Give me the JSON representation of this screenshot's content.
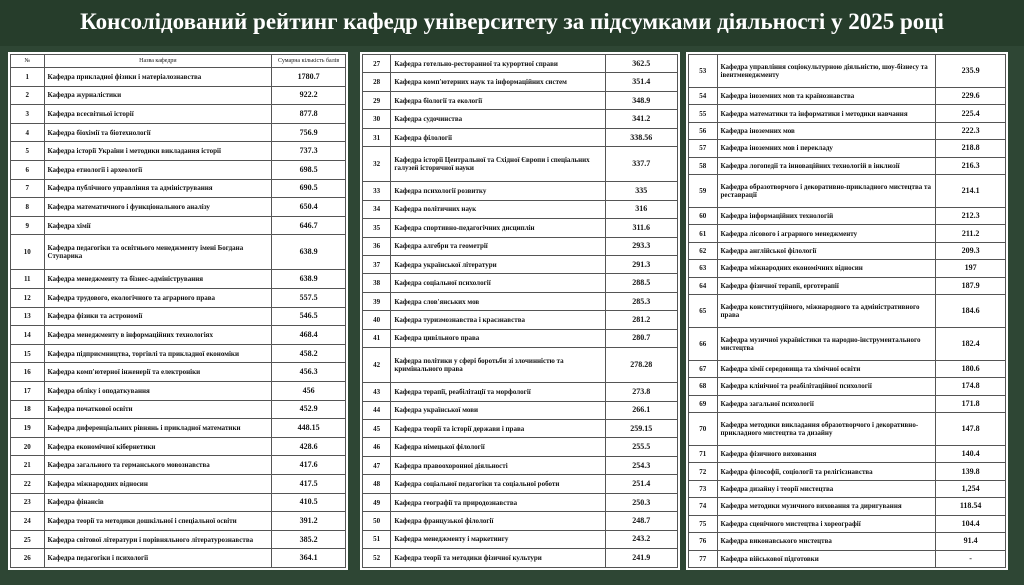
{
  "header": {
    "title": "Консолідований рейтинг кафедр університету за підсумками діяльності у 2025 році"
  },
  "columns": [
    "№",
    "Назва кафедри",
    "Сумарна кількість балів"
  ],
  "tables": [
    {
      "rows": [
        [
          "1",
          "Кафедра прикладної фізики і матеріалознавства",
          "1780.7"
        ],
        [
          "2",
          "Кафедра журналістики",
          "922.2"
        ],
        [
          "3",
          "Кафедра всесвітньої історії",
          "877.8"
        ],
        [
          "4",
          "Кафедра біохімії та біотехнології",
          "756.9"
        ],
        [
          "5",
          "Кафедра історії України і методики викладання історії",
          "737.3"
        ],
        [
          "6",
          "Кафедра етнології і археології",
          "698.5"
        ],
        [
          "7",
          "Кафедра публічного управління та адміністрування",
          "690.5"
        ],
        [
          "8",
          "Кафедра математичного і функціонального аналізу",
          "650.4"
        ],
        [
          "9",
          "Кафедра хімії",
          "646.7"
        ],
        [
          "10",
          "Кафедра педагогіки та освітнього менеджменту імені Богдана Ступарика",
          "638.9"
        ],
        [
          "11",
          "Кафедра менеджменту та бізнес-адміністрування",
          "638.9"
        ],
        [
          "12",
          "Кафедра трудового, екологічного та аграрного права",
          "557.5"
        ],
        [
          "13",
          "Кафедра фізики та астрономії",
          "546.5"
        ],
        [
          "14",
          "Кафедра менеджменту в інформаційних технологіях",
          "468.4"
        ],
        [
          "15",
          "Кафедра підприємництва, торгівлі та прикладної економіки",
          "458.2"
        ],
        [
          "16",
          "Кафедра комп'ютерної інженерії та електроніки",
          "456.3"
        ],
        [
          "17",
          "Кафедра обліку і оподаткування",
          "456"
        ],
        [
          "18",
          "Кафедра початкової освіти",
          "452.9"
        ],
        [
          "19",
          "Кафедра диференціальних рівнянь і прикладної математики",
          "448.15"
        ],
        [
          "20",
          "Кафедра економічної кібернетики",
          "428.6"
        ],
        [
          "21",
          "Кафедра загального та германського мовознавства",
          "417.6"
        ],
        [
          "22",
          "Кафедра міжнародних відносин",
          "417.5"
        ],
        [
          "23",
          "Кафедра фінансів",
          "410.5"
        ],
        [
          "24",
          "Кафедра теорії та методики дошкільної і спеціальної освіти",
          "391.2"
        ],
        [
          "25",
          "Кафедра світової літератури і порівняльного літературознавства",
          "385.2"
        ],
        [
          "26",
          "Кафедра педагогіки і психології",
          "364.1"
        ]
      ]
    },
    {
      "rows": [
        [
          "27",
          "Кафедра готельно-ресторанної та курортної справи",
          "362.5"
        ],
        [
          "28",
          "Кафедра комп'ютерних наук та інформаційних систем",
          "351.4"
        ],
        [
          "29",
          "Кафедра біології та екології",
          "348.9"
        ],
        [
          "30",
          "Кафедра судочинства",
          "341.2"
        ],
        [
          "31",
          "Кафедра філології",
          "338.56"
        ],
        [
          "32",
          "Кафедра історії Центральної та Східної Європи і спеціальних галузей історичної науки",
          "337.7"
        ],
        [
          "33",
          "Кафедра психології розвитку",
          "335"
        ],
        [
          "34",
          "Кафедра політичних наук",
          "316"
        ],
        [
          "35",
          "Кафедра спортивно-педагогічних дисциплін",
          "311.6"
        ],
        [
          "36",
          "Кафедра алгебри та геометрії",
          "293.3"
        ],
        [
          "37",
          "Кафедра української літератури",
          "291.3"
        ],
        [
          "38",
          "Кафедра соціальної психології",
          "288.5"
        ],
        [
          "39",
          "Кафедра слов'янських мов",
          "285.3"
        ],
        [
          "40",
          "Кафедра туризмознавства і краєзнавства",
          "281.2"
        ],
        [
          "41",
          "Кафедра цивільного права",
          "280.7"
        ],
        [
          "42",
          "Кафедра політики у сфері боротьби зі злочинністю та кримінального права",
          "278.28"
        ],
        [
          "43",
          "Кафедра терапії, реабілітації та морфології",
          "273.8"
        ],
        [
          "44",
          "Кафедра української мови",
          "266.1"
        ],
        [
          "45",
          "Кафедра теорії та історії держави і права",
          "259.15"
        ],
        [
          "46",
          "Кафедра німецької філології",
          "255.5"
        ],
        [
          "47",
          "Кафедра правоохоронної діяльності",
          "254.3"
        ],
        [
          "48",
          "Кафедра соціальної педагогіки та соціальної роботи",
          "251.4"
        ],
        [
          "49",
          "Кафедра географії та природознавства",
          "250.3"
        ],
        [
          "50",
          "Кафедра французької філології",
          "248.7"
        ],
        [
          "51",
          "Кафедра менеджменту і маркетингу",
          "243.2"
        ],
        [
          "52",
          "Кафедра теорії та методики фізичної культури",
          "241.9"
        ]
      ]
    },
    {
      "rows": [
        [
          "53",
          "Кафедра управління соціокультурною діяльністю, шоу-бізнесу та івентменеджменту",
          "235.9"
        ],
        [
          "54",
          "Кафедра іноземних мов та країнознавства",
          "229.6"
        ],
        [
          "55",
          "Кафедра математики та інформатики і методики навчання",
          "225.4"
        ],
        [
          "56",
          "Кафедра іноземних мов",
          "222.3"
        ],
        [
          "57",
          "Кафедра іноземних мов і перекладу",
          "218.8"
        ],
        [
          "58",
          "Кафедра логопедії та інноваційних технологій в інклюзії",
          "216.3"
        ],
        [
          "59",
          "Кафедра образотворчого і декоративно-прикладного мистецтва та реставрації",
          "214.1"
        ],
        [
          "60",
          "Кафедра інформаційних технологій",
          "212.3"
        ],
        [
          "61",
          "Кафедра лісового і аграрного менеджменту",
          "211.2"
        ],
        [
          "62",
          "Кафедра англійської філології",
          "209.3"
        ],
        [
          "63",
          "Кафедра міжнародних економічних відносин",
          "197"
        ],
        [
          "64",
          "Кафедра фізичної терапії, ерготерапії",
          "187.9"
        ],
        [
          "65",
          "Кафедра конституційного, міжнародного та адміністративного права",
          "184.6"
        ],
        [
          "66",
          "Кафедра музичної україністики та народно-інструментального мистецтва",
          "182.4"
        ],
        [
          "67",
          "Кафедра хімії середовища та хімічної освіти",
          "180.6"
        ],
        [
          "68",
          "Кафедра клінічної та реабілітаційної психології",
          "174.8"
        ],
        [
          "69",
          "Кафедра загальної психології",
          "171.8"
        ],
        [
          "70",
          "Кафедра методики викладання образотворчого і декоративно-прикладного мистецтва та дизайну",
          "147.8"
        ],
        [
          "71",
          "Кафедра фізичного виховання",
          "140.4"
        ],
        [
          "72",
          "Кафедра філософії, соціології та релігієзнавства",
          "139.8"
        ],
        [
          "73",
          "Кафедра дизайну і теорії мистецтва",
          "1,254"
        ],
        [
          "74",
          "Кафедра методики музичного виховання та диригування",
          "118.54"
        ],
        [
          "75",
          "Кафедра сценічного мистецтва і хореографії",
          "104.4"
        ],
        [
          "76",
          "Кафедра виконавського мистецтва",
          "91.4"
        ],
        [
          "77",
          "Кафедра військової підготовки",
          "-"
        ]
      ]
    }
  ]
}
